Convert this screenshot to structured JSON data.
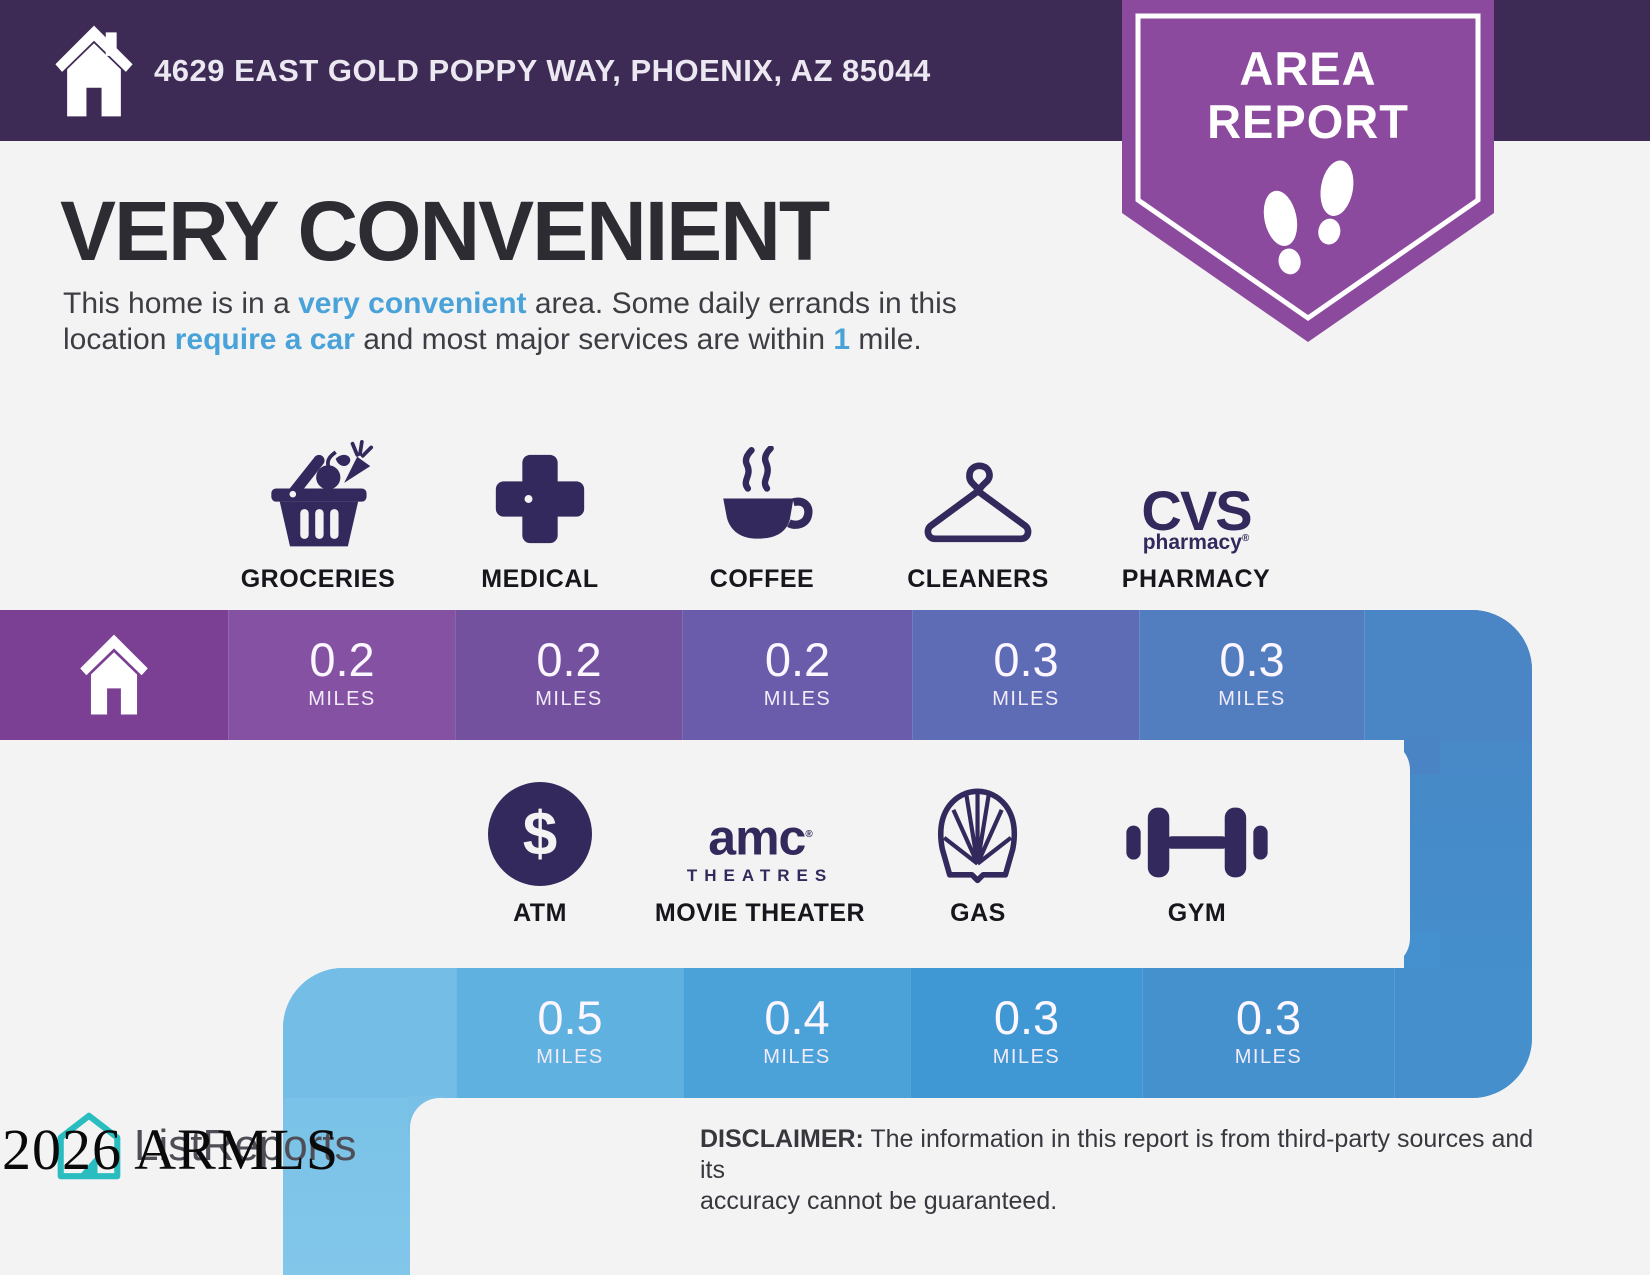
{
  "header": {
    "address": "4629 EAST GOLD POPPY WAY, PHOENIX, AZ 85044"
  },
  "badge": {
    "line1": "AREA",
    "line2": "REPORT"
  },
  "intro": {
    "title": "VERY CONVENIENT",
    "description_parts": [
      {
        "text": "This home is in a "
      },
      {
        "text": "very convenient",
        "highlight": true
      },
      {
        "text": " area. Some daily errands in this\nlocation "
      },
      {
        "text": "require a car",
        "highlight": true
      },
      {
        "text": " and most major services are within "
      },
      {
        "text": "1",
        "highlight": true
      },
      {
        "text": " mile."
      }
    ]
  },
  "row1": {
    "items": [
      {
        "label": "GROCERIES",
        "icon": "groceries-basket",
        "value": "0.2",
        "unit": "MILES"
      },
      {
        "label": "MEDICAL",
        "icon": "medical-cross",
        "value": "0.2",
        "unit": "MILES"
      },
      {
        "label": "COFFEE",
        "icon": "coffee-cup",
        "value": "0.2",
        "unit": "MILES"
      },
      {
        "label": "CLEANERS",
        "icon": "clothes-hanger",
        "value": "0.3",
        "unit": "MILES"
      },
      {
        "label": "PHARMACY",
        "icon": "cvs-pharmacy-logo",
        "value": "0.3",
        "unit": "MILES"
      }
    ]
  },
  "row2": {
    "items": [
      {
        "label": "ATM",
        "icon": "dollar-circle",
        "value": "0.5",
        "unit": "MILES"
      },
      {
        "label": "MOVIE THEATER",
        "icon": "amc-theatres-logo",
        "value": "0.4",
        "unit": "MILES"
      },
      {
        "label": "GAS",
        "icon": "shell-logo",
        "value": "0.3",
        "unit": "MILES"
      },
      {
        "label": "GYM",
        "icon": "dumbbell",
        "value": "0.3",
        "unit": "MILES"
      }
    ]
  },
  "logos": {
    "cvs_line1": "CVS",
    "cvs_line2": "pharmacy",
    "cvs_reg": "®",
    "amc_line1": "amc",
    "amc_line2": "THEATRES",
    "amc_reg": "®",
    "atm_symbol": "$"
  },
  "footer": {
    "logo_text": "ListReports",
    "watermark": "2026 ARMLS",
    "disclaimer_parts": [
      {
        "text": "DISCLAIMER:",
        "bold": true
      },
      {
        "text": " The information in this report is from third-party sources and its\naccuracy cannot be guaranteed."
      }
    ]
  },
  "palette": {
    "header_bg": "#3d2b55",
    "badge_purple": "#8b4a9d",
    "icon_purple": "#33295c",
    "accent_blue_text": "#49a3d9",
    "page_bg": "#f4f3f4",
    "logo_teal": "#2abdbf",
    "bar1_colors": [
      "#7b4094",
      "#8552a3",
      "#73519f",
      "#6a5caa",
      "#5e6bb5",
      "#527ec0",
      "#4a85c5"
    ],
    "bar2_colors": [
      "#73bde6",
      "#5fb1e0",
      "#4aa2d8",
      "#3f98d3",
      "#4491cd",
      "#4590cc"
    ]
  }
}
